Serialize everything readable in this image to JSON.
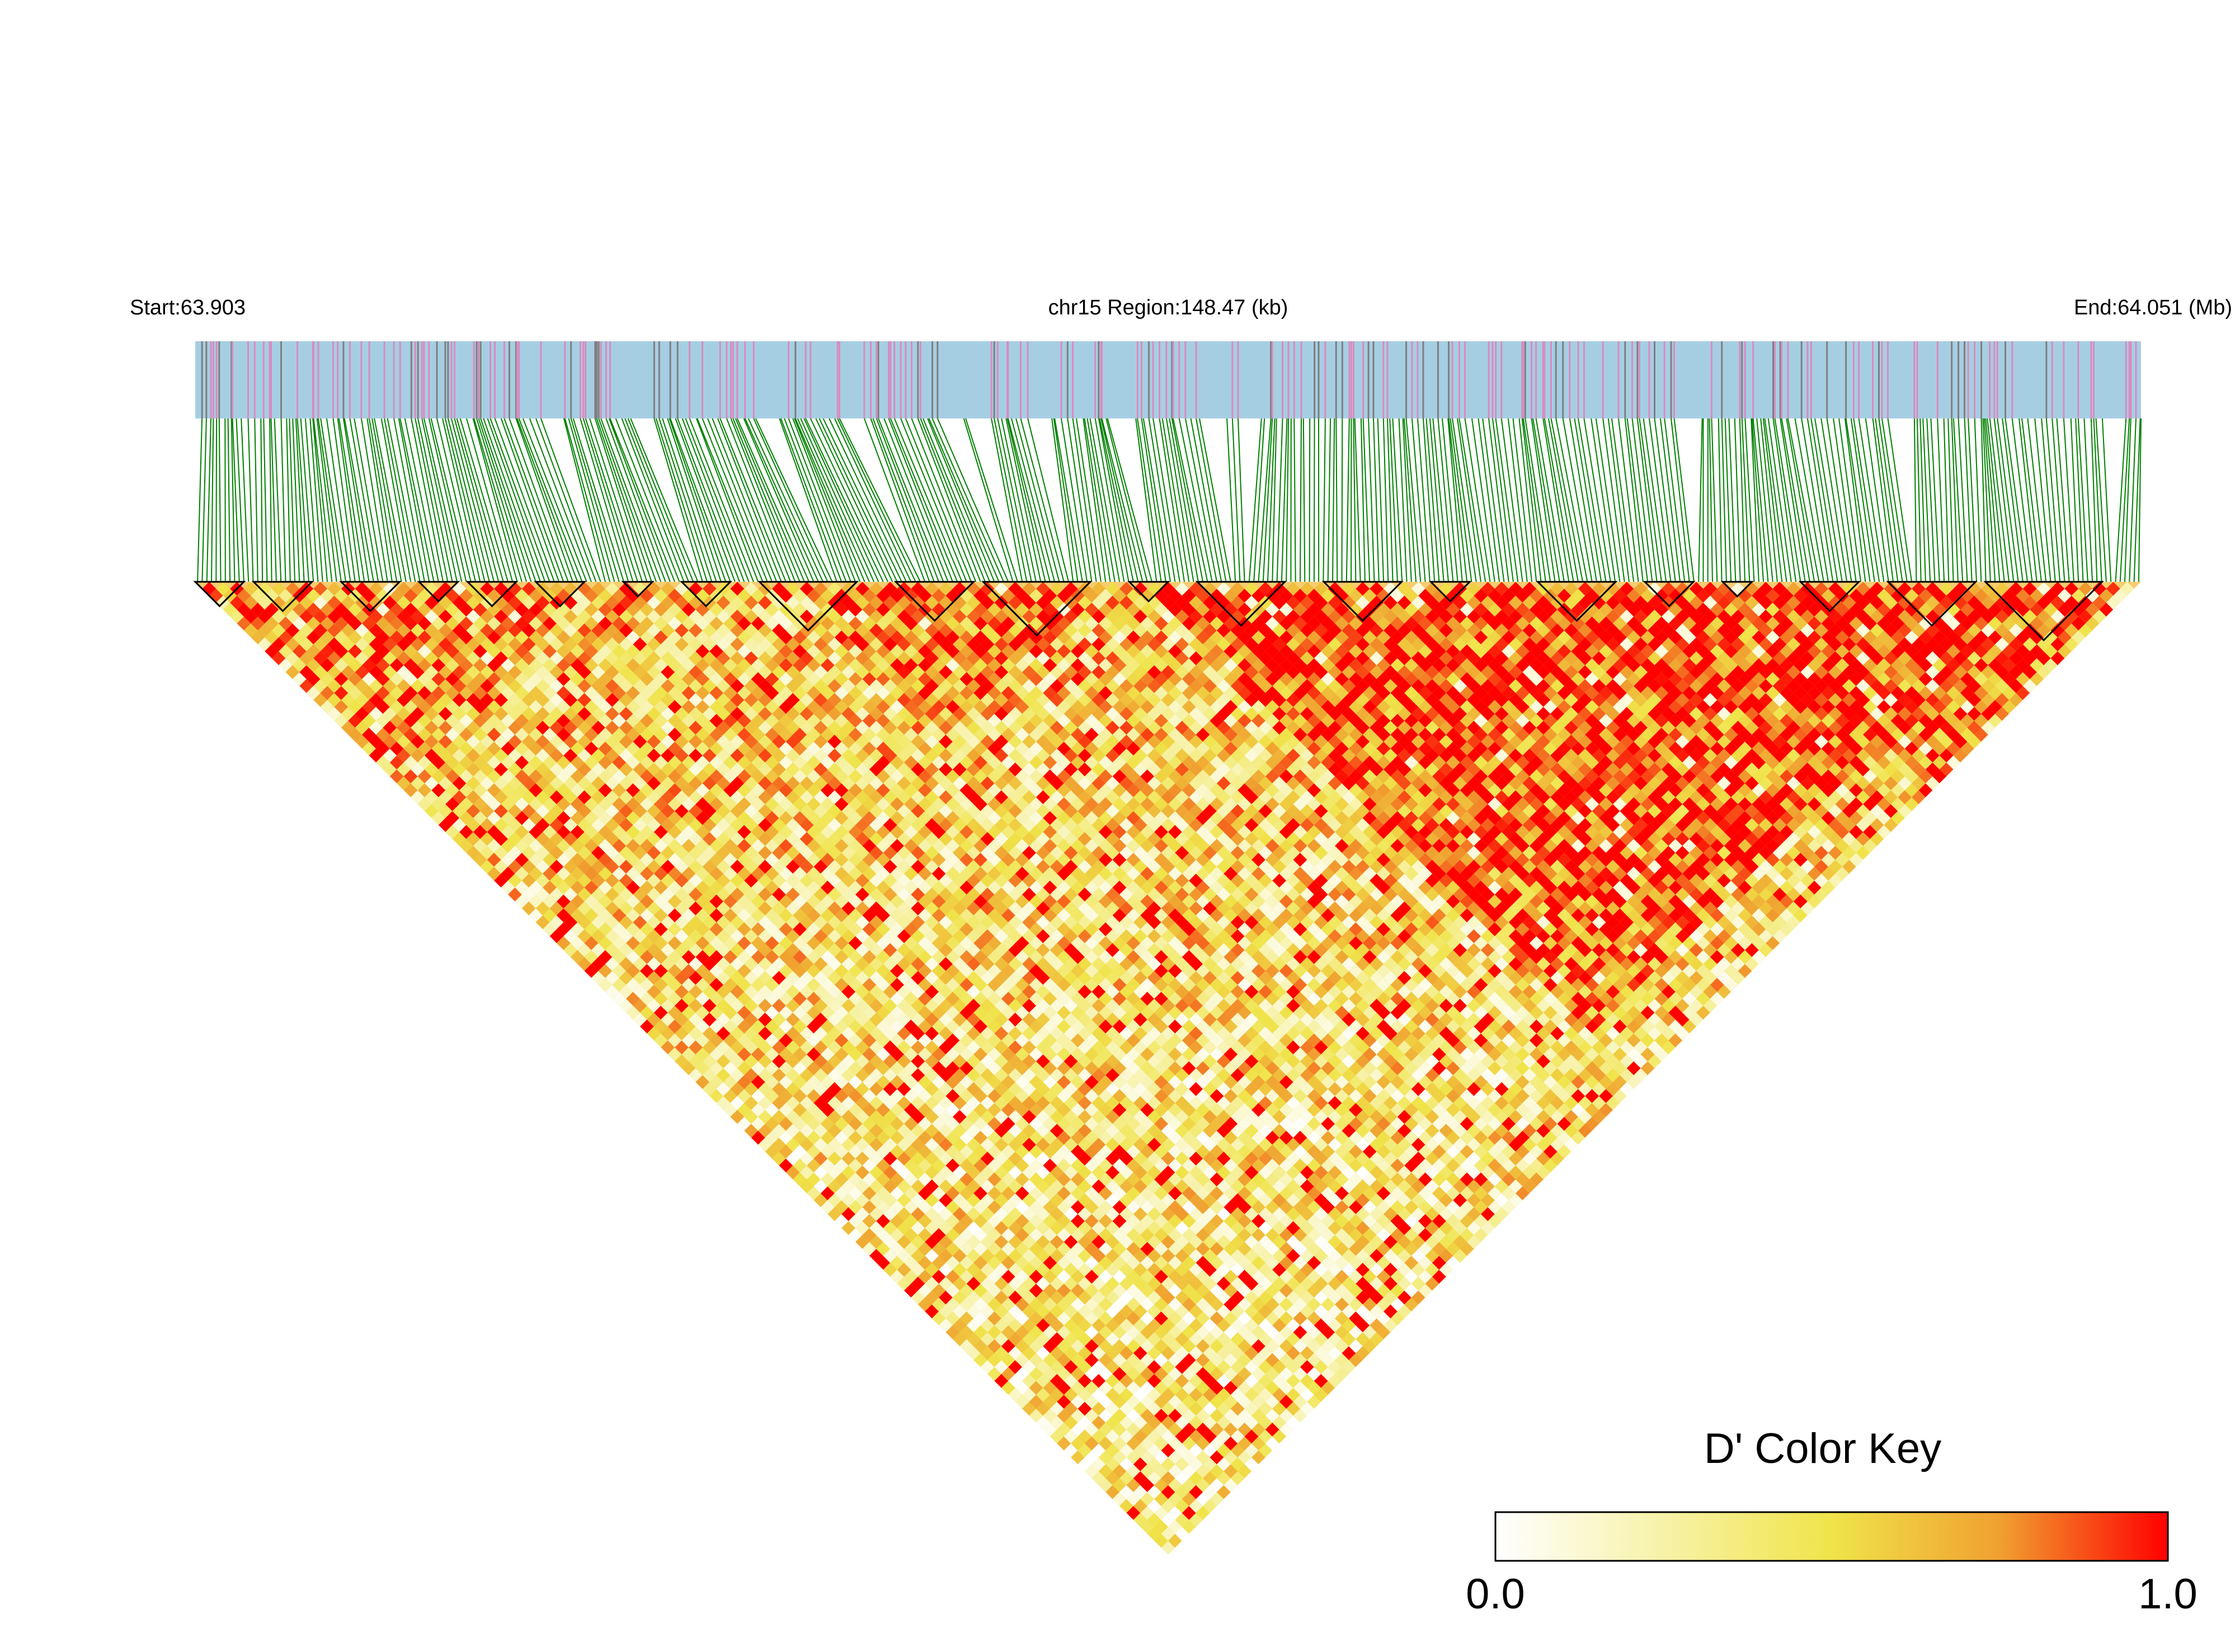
{
  "chart_data": {
    "type": "heatmap",
    "subtype": "linkage-disequilibrium-triangle",
    "chromosome": "chr15",
    "header": {
      "start_label": "Start:63.903",
      "region_label": "chr15 Region:148.47 (kb)",
      "end_label": "End:64.051 (Mb)"
    },
    "region": {
      "start_mb": 63.903,
      "end_mb": 64.051,
      "length_kb": 148.47
    },
    "snp_track": {
      "background_color": "#a6cee3",
      "marker_colors": [
        "#d98bc0",
        "#7f7f7f"
      ]
    },
    "connector_color": "#008000",
    "block_outline_color": "#000000",
    "blocks": [
      [
        0.0,
        0.025
      ],
      [
        0.03,
        0.06
      ],
      [
        0.075,
        0.105
      ],
      [
        0.115,
        0.135
      ],
      [
        0.14,
        0.165
      ],
      [
        0.175,
        0.2
      ],
      [
        0.22,
        0.235
      ],
      [
        0.25,
        0.275
      ],
      [
        0.29,
        0.34
      ],
      [
        0.36,
        0.4
      ],
      [
        0.405,
        0.46
      ],
      [
        0.48,
        0.5
      ],
      [
        0.515,
        0.56
      ],
      [
        0.58,
        0.62
      ],
      [
        0.635,
        0.655
      ],
      [
        0.69,
        0.73
      ],
      [
        0.745,
        0.77
      ],
      [
        0.785,
        0.8
      ],
      [
        0.825,
        0.855
      ],
      [
        0.87,
        0.915
      ],
      [
        0.92,
        0.98
      ]
    ],
    "color_key": {
      "title": "D' Color Key",
      "min_label": "0.0",
      "max_label": "1.0",
      "min": 0.0,
      "max": 1.0,
      "stops": [
        "#ffffff",
        "#f7f2a8",
        "#f0e44a",
        "#f0a030",
        "#ff0000"
      ]
    },
    "snp_count": 420
  }
}
